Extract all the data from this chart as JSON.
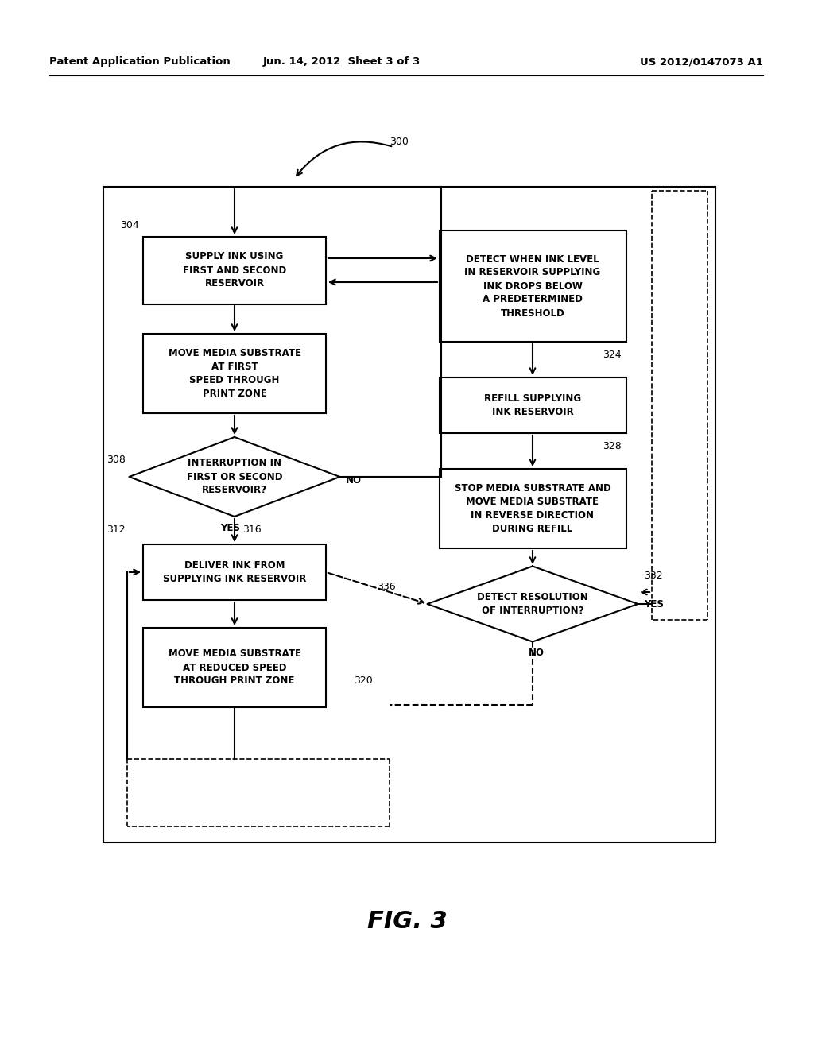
{
  "header_left": "Patent Application Publication",
  "header_center": "Jun. 14, 2012  Sheet 3 of 3",
  "header_right": "US 2012/0147073 A1",
  "figure_label": "FIG. 3",
  "background_color": "#ffffff",
  "ref_300": "300",
  "ref_304": "304",
  "ref_308": "308",
  "ref_312": "312",
  "ref_316": "316",
  "ref_320": "320",
  "ref_324": "324",
  "ref_328": "328",
  "ref_332": "332",
  "ref_336": "336",
  "label_supply_ink": "SUPPLY INK USING\nFIRST AND SECOND\nRESERVOIR",
  "label_move_first": "MOVE MEDIA SUBSTRATE\nAT FIRST\nSPEED THROUGH\nPRINT ZONE",
  "label_detect_ink": "DETECT WHEN INK LEVEL\nIN RESERVOIR SUPPLYING\nINK DROPS BELOW\nA PREDETERMINED\nTHRESHOLD",
  "label_refill": "REFILL SUPPLYING\nINK RESERVOIR",
  "label_stop_move": "STOP MEDIA SUBSTRATE AND\nMOVE MEDIA SUBSTRATE\nIN REVERSE DIRECTION\nDURING REFILL",
  "label_deliver_ink": "DELIVER INK FROM\nSUPPLYING INK RESERVOIR",
  "label_move_reduced": "MOVE MEDIA SUBSTRATE\nAT REDUCED SPEED\nTHROUGH PRINT ZONE",
  "label_interruption": "INTERRUPTION IN\nFIRST OR SECOND\nRESERVOIR?",
  "label_detect_res": "DETECT RESOLUTION\nOF INTERRUPTION?",
  "label_yes": "YES",
  "label_no": "NO"
}
